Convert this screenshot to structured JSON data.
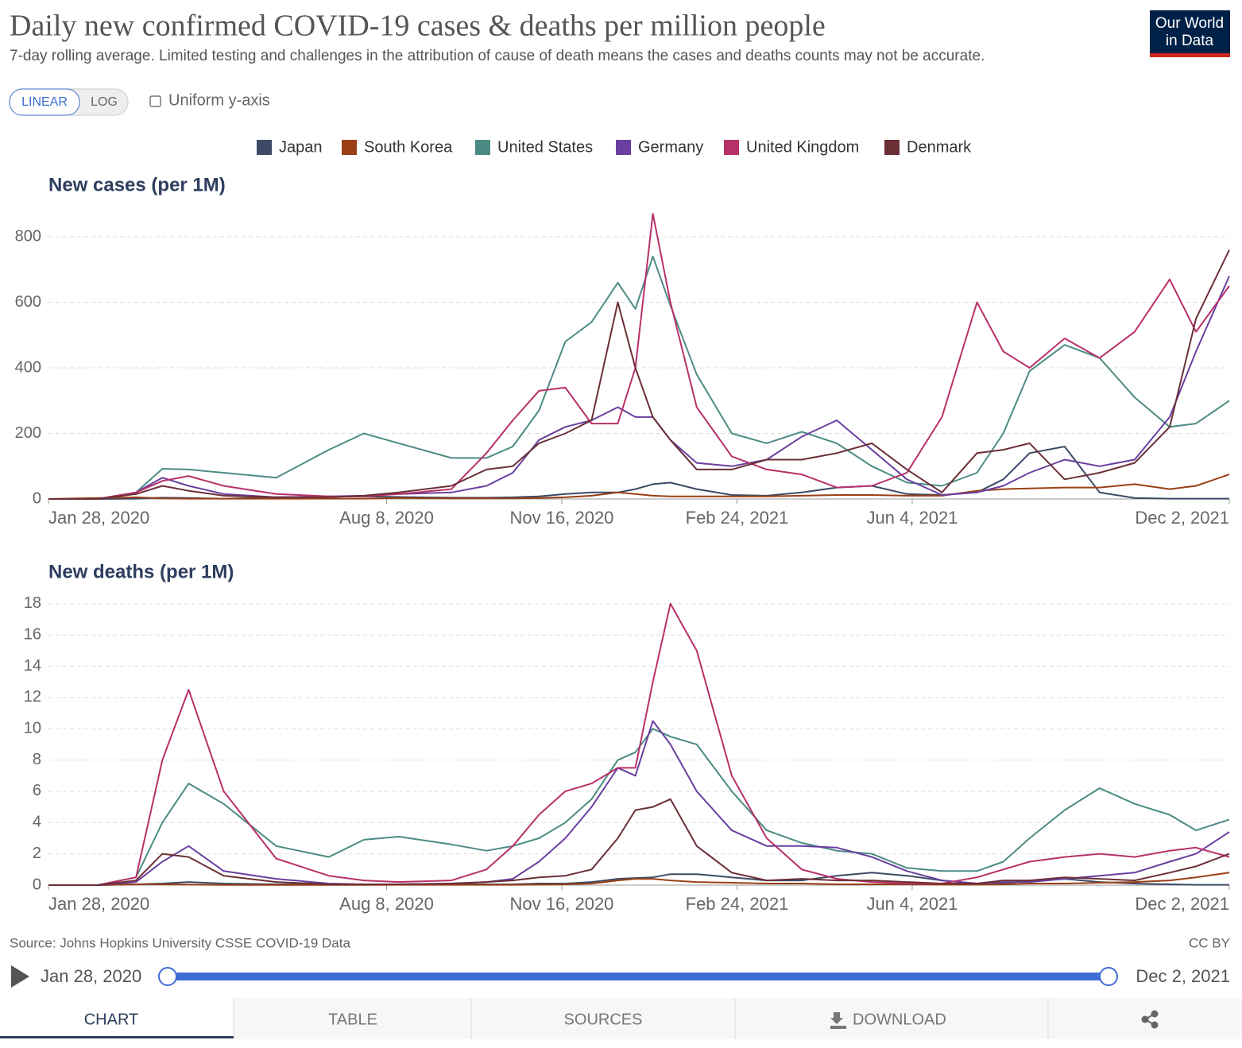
{
  "header": {
    "title": "Daily new confirmed COVID-19 cases & deaths per million people",
    "subtitle": "7-day rolling average. Limited testing and challenges in the attribution of cause of death means the cases and deaths counts may not be accurate.",
    "logo": [
      "Our World",
      "in Data"
    ]
  },
  "controls": {
    "linear": "LINEAR",
    "log": "LOG",
    "uniform": "Uniform y-axis"
  },
  "chart_data": [
    {
      "type": "line",
      "title": "New cases (per 1M)",
      "x": [
        "2020-01-28",
        "2020-02-25",
        "2020-03-18",
        "2020-04-02",
        "2020-04-17",
        "2020-05-07",
        "2020-06-06",
        "2020-07-06",
        "2020-07-26",
        "2020-08-15",
        "2020-09-14",
        "2020-10-04",
        "2020-10-19",
        "2020-11-03",
        "2020-11-18",
        "2020-12-03",
        "2020-12-18",
        "2020-12-28",
        "2021-01-07",
        "2021-01-17",
        "2021-02-01",
        "2021-02-21",
        "2021-03-13",
        "2021-04-02",
        "2021-04-22",
        "2021-05-12",
        "2021-06-01",
        "2021-06-21",
        "2021-07-11",
        "2021-07-26",
        "2021-08-10",
        "2021-08-30",
        "2021-09-19",
        "2021-10-09",
        "2021-10-29",
        "2021-11-13",
        "2021-12-02"
      ],
      "xlim": [
        "2020-01-28",
        "2021-12-02"
      ],
      "xticks": [
        {
          "value": "2020-01-28",
          "label": "Jan 28, 2020"
        },
        {
          "value": "2020-08-08",
          "label": "Aug 8, 2020"
        },
        {
          "value": "2020-11-16",
          "label": "Nov 16, 2020"
        },
        {
          "value": "2021-02-24",
          "label": "Feb 24, 2021"
        },
        {
          "value": "2021-06-04",
          "label": "Jun 4, 2021"
        },
        {
          "value": "2021-12-02",
          "label": "Dec 2, 2021"
        }
      ],
      "ylim": [
        0,
        880
      ],
      "yticks": [
        0,
        200,
        400,
        600,
        800
      ],
      "grid": true,
      "series": [
        {
          "name": "Japan",
          "color": "#3c4a66",
          "values": [
            0,
            0,
            1,
            4,
            3,
            1,
            5,
            7,
            8,
            6,
            4,
            4,
            5,
            8,
            15,
            20,
            20,
            30,
            45,
            50,
            30,
            12,
            10,
            20,
            35,
            40,
            15,
            12,
            20,
            60,
            140,
            160,
            20,
            3,
            1,
            1,
            1
          ]
        },
        {
          "name": "South Korea",
          "color": "#9a3f16",
          "values": [
            0,
            3,
            5,
            2,
            1,
            1,
            1,
            1,
            1,
            3,
            2,
            2,
            2,
            3,
            5,
            10,
            20,
            15,
            10,
            8,
            8,
            8,
            8,
            10,
            12,
            12,
            10,
            10,
            25,
            30,
            32,
            35,
            35,
            45,
            30,
            40,
            75
          ]
        },
        {
          "name": "United States",
          "color": "#4c8b84",
          "values": [
            0,
            0,
            20,
            92,
            90,
            80,
            65,
            150,
            200,
            170,
            125,
            125,
            160,
            270,
            480,
            540,
            660,
            580,
            740,
            590,
            380,
            200,
            170,
            205,
            170,
            100,
            50,
            40,
            80,
            200,
            390,
            470,
            430,
            310,
            220,
            230,
            300
          ]
        },
        {
          "name": "Germany",
          "color": "#6a3fa0",
          "values": [
            0,
            0,
            20,
            65,
            40,
            15,
            5,
            8,
            10,
            15,
            20,
            40,
            80,
            180,
            220,
            240,
            280,
            250,
            250,
            180,
            110,
            100,
            120,
            190,
            240,
            150,
            60,
            12,
            20,
            40,
            80,
            120,
            100,
            120,
            250,
            450,
            680
          ]
        },
        {
          "name": "United Kingdom",
          "color": "#b8306a",
          "values": [
            0,
            0,
            20,
            55,
            70,
            40,
            15,
            8,
            8,
            15,
            30,
            140,
            240,
            330,
            340,
            230,
            230,
            400,
            870,
            600,
            280,
            130,
            90,
            75,
            35,
            40,
            80,
            250,
            600,
            450,
            400,
            490,
            430,
            510,
            670,
            510,
            650
          ]
        },
        {
          "name": "Denmark",
          "color": "#6b2f36",
          "values": [
            0,
            0,
            15,
            40,
            25,
            10,
            5,
            5,
            10,
            20,
            40,
            90,
            100,
            170,
            200,
            240,
            600,
            400,
            250,
            180,
            90,
            90,
            120,
            120,
            140,
            170,
            90,
            20,
            140,
            150,
            170,
            60,
            80,
            110,
            220,
            550,
            760
          ]
        }
      ]
    },
    {
      "type": "line",
      "title": "New deaths (per 1M)",
      "x": [
        "2020-01-28",
        "2020-02-25",
        "2020-03-18",
        "2020-04-02",
        "2020-04-17",
        "2020-05-07",
        "2020-06-06",
        "2020-07-06",
        "2020-07-26",
        "2020-08-15",
        "2020-09-14",
        "2020-10-04",
        "2020-10-19",
        "2020-11-03",
        "2020-11-18",
        "2020-12-03",
        "2020-12-18",
        "2020-12-28",
        "2021-01-07",
        "2021-01-17",
        "2021-02-01",
        "2021-02-21",
        "2021-03-13",
        "2021-04-02",
        "2021-04-22",
        "2021-05-12",
        "2021-06-01",
        "2021-06-21",
        "2021-07-11",
        "2021-07-26",
        "2021-08-10",
        "2021-08-30",
        "2021-09-19",
        "2021-10-09",
        "2021-10-29",
        "2021-11-13",
        "2021-12-02"
      ],
      "xlim": [
        "2020-01-28",
        "2021-12-02"
      ],
      "xticks": [
        {
          "value": "2020-01-28",
          "label": "Jan 28, 2020"
        },
        {
          "value": "2020-08-08",
          "label": "Aug 8, 2020"
        },
        {
          "value": "2020-11-16",
          "label": "Nov 16, 2020"
        },
        {
          "value": "2021-02-24",
          "label": "Feb 24, 2021"
        },
        {
          "value": "2021-06-04",
          "label": "Jun 4, 2021"
        },
        {
          "value": "2021-12-02",
          "label": "Dec 2, 2021"
        }
      ],
      "ylim": [
        0,
        18.5
      ],
      "yticks": [
        0,
        2,
        4,
        6,
        8,
        10,
        12,
        14,
        16,
        18
      ],
      "grid": true,
      "series": [
        {
          "color": "#3c4a66",
          "values": [
            0,
            0,
            0.05,
            0.1,
            0.2,
            0.1,
            0.05,
            0.05,
            0.05,
            0.05,
            0.05,
            0.05,
            0.05,
            0.1,
            0.1,
            0.2,
            0.4,
            0.45,
            0.5,
            0.7,
            0.7,
            0.5,
            0.3,
            0.3,
            0.6,
            0.8,
            0.6,
            0.3,
            0.1,
            0.1,
            0.3,
            0.4,
            0.2,
            0.1,
            0.05,
            0.02,
            0.02
          ]
        },
        {
          "color": "#9a3f16",
          "values": [
            0,
            0,
            0.05,
            0.05,
            0.03,
            0.01,
            0.01,
            0.01,
            0.01,
            0.02,
            0.02,
            0.02,
            0.02,
            0.03,
            0.05,
            0.1,
            0.3,
            0.4,
            0.4,
            0.3,
            0.2,
            0.15,
            0.1,
            0.1,
            0.05,
            0.05,
            0.05,
            0.03,
            0.03,
            0.05,
            0.1,
            0.1,
            0.15,
            0.2,
            0.3,
            0.5,
            0.8
          ]
        },
        {
          "color": "#4c8b84",
          "values": [
            0,
            0,
            0.5,
            4,
            6.5,
            5.2,
            2.5,
            1.8,
            2.9,
            3.1,
            2.6,
            2.2,
            2.5,
            3,
            4,
            5.5,
            8,
            8.5,
            10,
            9.5,
            9,
            6,
            3.5,
            2.7,
            2.2,
            2,
            1.1,
            0.9,
            0.9,
            1.5,
            3,
            4.8,
            6.2,
            5.2,
            4.5,
            3.5,
            4.2
          ]
        },
        {
          "color": "#6a3fa0",
          "values": [
            0,
            0,
            0.2,
            1.5,
            2.5,
            0.9,
            0.4,
            0.1,
            0.05,
            0.05,
            0.1,
            0.2,
            0.4,
            1.5,
            3,
            5,
            7.5,
            7,
            10.5,
            9,
            6,
            3.5,
            2.5,
            2.5,
            2.4,
            1.8,
            0.9,
            0.3,
            0.1,
            0.2,
            0.2,
            0.4,
            0.6,
            0.8,
            1.5,
            2,
            3.4
          ]
        },
        {
          "color": "#b8306a",
          "values": [
            0,
            0,
            0.5,
            8,
            12.5,
            6,
            1.7,
            0.6,
            0.3,
            0.2,
            0.3,
            1,
            2.5,
            4.5,
            6,
            6.5,
            7.5,
            7.5,
            13,
            18,
            15,
            7,
            3,
            1,
            0.4,
            0.2,
            0.1,
            0.1,
            0.5,
            1,
            1.5,
            1.8,
            2,
            1.8,
            2.2,
            2.4,
            1.8
          ]
        },
        {
          "color": "#6b2f36",
          "values": [
            0,
            0,
            0.3,
            2,
            1.8,
            0.6,
            0.2,
            0.05,
            0.05,
            0.05,
            0.1,
            0.2,
            0.3,
            0.5,
            0.6,
            1,
            3,
            4.8,
            5,
            5.5,
            2.5,
            0.8,
            0.3,
            0.4,
            0.3,
            0.3,
            0.2,
            0.1,
            0.1,
            0.3,
            0.3,
            0.5,
            0.4,
            0.3,
            0.8,
            1.2,
            2
          ]
        }
      ]
    }
  ],
  "footer": {
    "source": "Source: Johns Hopkins University CSSE COVID-19 Data",
    "license": "CC BY"
  },
  "timeline": {
    "start": "Jan 28, 2020",
    "end": "Dec 2, 2021"
  },
  "tabs": [
    "CHART",
    "TABLE",
    "SOURCES",
    "DOWNLOAD"
  ]
}
